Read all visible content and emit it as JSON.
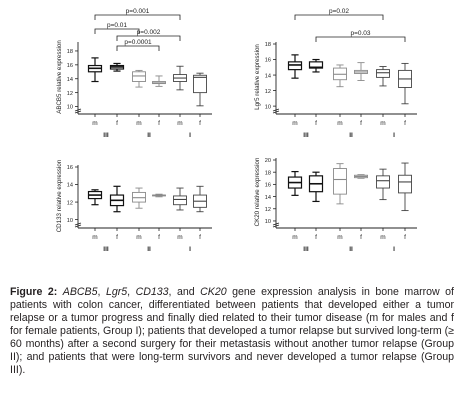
{
  "chart_data": [
    {
      "type": "box",
      "ylabel": "ABCB5 relative expression",
      "ylim": [
        9.5,
        19
      ],
      "yticks": [
        "10",
        "12",
        "14",
        "16",
        "18"
      ],
      "categories": [
        "m",
        "f",
        "m",
        "f",
        "m",
        "f"
      ],
      "groups": [
        "III",
        "II",
        "I"
      ],
      "series": [
        {
          "min": 13.6,
          "q1": 15.0,
          "median": 15.5,
          "q3": 15.9,
          "max": 17.0
        },
        {
          "min": 15.1,
          "q1": 15.4,
          "median": 15.7,
          "q3": 15.9,
          "max": 16.2
        },
        {
          "min": 12.8,
          "q1": 13.6,
          "median": 14.4,
          "q3": 15.0,
          "max": 15.2
        },
        {
          "min": 12.9,
          "q1": 13.3,
          "median": 13.4,
          "q3": 13.6,
          "max": 14.4
        },
        {
          "min": 12.4,
          "q1": 13.6,
          "median": 14.1,
          "q3": 14.6,
          "max": 15.8
        },
        {
          "min": 10.1,
          "q1": 12.0,
          "median": 14.2,
          "q3": 14.5,
          "max": 14.8
        }
      ],
      "significance": [
        "p=0.001",
        "p=0.01",
        "p=0.002",
        "p=0.0001"
      ]
    },
    {
      "type": "box",
      "ylabel": "Lgr5 relative expression",
      "ylim": [
        9.5,
        18
      ],
      "yticks": [
        "10",
        "12",
        "14",
        "16",
        "18"
      ],
      "categories": [
        "m",
        "f",
        "m",
        "f",
        "m",
        "f"
      ],
      "groups": [
        "III",
        "II",
        "I"
      ],
      "series": [
        {
          "min": 13.6,
          "q1": 14.7,
          "median": 15.3,
          "q3": 15.7,
          "max": 16.6
        },
        {
          "min": 14.4,
          "q1": 14.9,
          "median": 15.0,
          "q3": 15.7,
          "max": 16.0
        },
        {
          "min": 12.5,
          "q1": 13.4,
          "median": 14.1,
          "q3": 14.9,
          "max": 15.3
        },
        {
          "min": 13.3,
          "q1": 14.2,
          "median": 14.4,
          "q3": 14.6,
          "max": 15.6
        },
        {
          "min": 12.6,
          "q1": 13.7,
          "median": 14.3,
          "q3": 14.7,
          "max": 15.1
        },
        {
          "min": 10.3,
          "q1": 12.4,
          "median": 13.5,
          "q3": 14.6,
          "max": 15.5
        }
      ],
      "significance": [
        "p=0.02",
        "p=0.03"
      ]
    },
    {
      "type": "box",
      "ylabel": "CD133 relative expression",
      "ylim": [
        9.5,
        16
      ],
      "yticks": [
        "10",
        "12",
        "14",
        "16"
      ],
      "categories": [
        "m",
        "f",
        "m",
        "f",
        "m",
        "f"
      ],
      "groups": [
        "III",
        "II",
        "I"
      ],
      "series": [
        {
          "min": 11.7,
          "q1": 12.4,
          "median": 12.8,
          "q3": 13.2,
          "max": 13.4
        },
        {
          "min": 10.9,
          "q1": 11.6,
          "median": 12.2,
          "q3": 12.8,
          "max": 13.8
        },
        {
          "min": 11.3,
          "q1": 12.0,
          "median": 12.5,
          "q3": 13.1,
          "max": 13.6
        },
        {
          "min": 12.6,
          "q1": 12.7,
          "median": 12.8,
          "q3": 12.8,
          "max": 12.9
        },
        {
          "min": 11.1,
          "q1": 11.7,
          "median": 12.3,
          "q3": 12.7,
          "max": 13.6
        },
        {
          "min": 10.9,
          "q1": 11.4,
          "median": 12.1,
          "q3": 12.8,
          "max": 13.8
        }
      ],
      "significance": []
    },
    {
      "type": "box",
      "ylabel": "CK20 relative expression",
      "ylim": [
        9.5,
        20
      ],
      "yticks": [
        "10",
        "12",
        "14",
        "16",
        "18",
        "20"
      ],
      "categories": [
        "m",
        "f",
        "m",
        "f",
        "m",
        "f"
      ],
      "groups": [
        "III",
        "II",
        "I"
      ],
      "series": [
        {
          "min": 14.2,
          "q1": 15.4,
          "median": 16.3,
          "q3": 17.2,
          "max": 18.1
        },
        {
          "min": 13.2,
          "q1": 14.8,
          "median": 16.1,
          "q3": 17.4,
          "max": 18.0
        },
        {
          "min": 12.8,
          "q1": 14.4,
          "median": 16.8,
          "q3": 18.6,
          "max": 19.4
        },
        {
          "min": 17.0,
          "q1": 17.1,
          "median": 17.3,
          "q3": 17.5,
          "max": 17.6
        },
        {
          "min": 13.5,
          "q1": 15.4,
          "median": 16.6,
          "q3": 17.4,
          "max": 18.5
        },
        {
          "min": 11.7,
          "q1": 14.6,
          "median": 16.4,
          "q3": 17.5,
          "max": 19.5
        }
      ],
      "significance": []
    }
  ],
  "caption": {
    "label": "Figure 2:",
    "gene1": "ABCB5",
    "sep1": ", ",
    "gene2": "Lgr5",
    "sep2": ", ",
    "gene3": "CD133",
    "sep3": ", and ",
    "gene4": "CK20",
    "rest": " gene expression analysis in bone marrow of patients with colon cancer, differentiated between patients that developed either a tumor relapse or a tumor progress and finally died related to their tumor disease (m for males and f for female patients, Group I); patients that developed a tumor relapse but survived long-term (≥ 60 months) after a second surgery for their metastasis without another tumor relapse (Group II); and patients that were long-term survivors and never developed a tumor relapse (Group III)."
  },
  "colors": {
    "group_III": "#111111",
    "group_II": "#8a8a8a",
    "group_I": "#444444"
  }
}
